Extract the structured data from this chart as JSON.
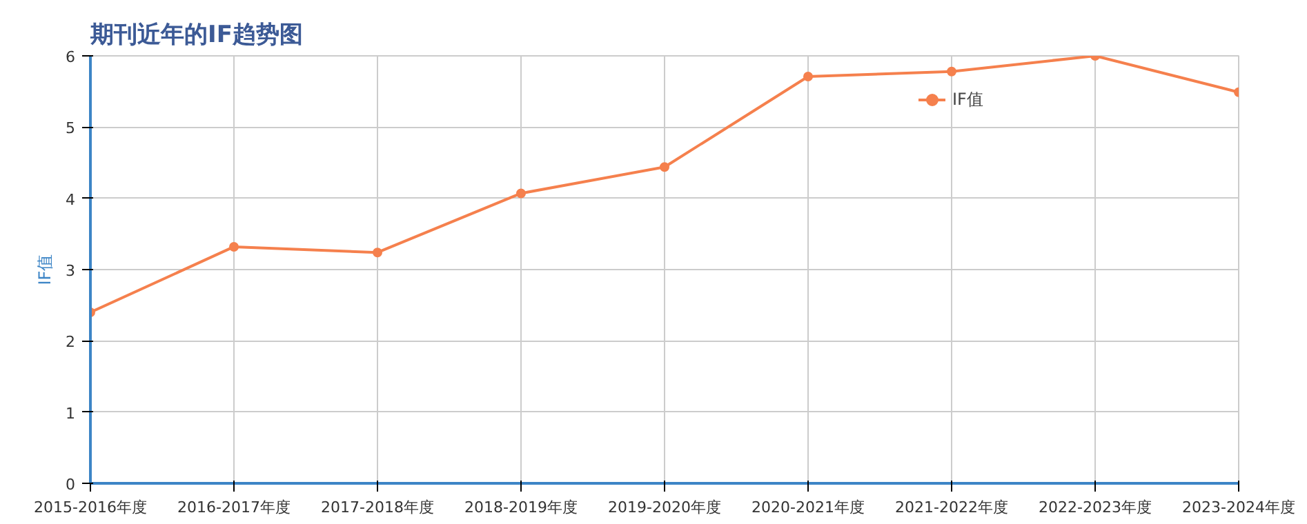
{
  "chart_data": {
    "type": "line",
    "title": "期刊近年的IF趋势图",
    "ylabel": "IF值",
    "categories": [
      "2015-2016年度",
      "2016-2017年度",
      "2017-2018年度",
      "2018-2019年度",
      "2019-2020年度",
      "2020-2021年度",
      "2021-2022年度",
      "2022-2023年度",
      "2023-2024年度"
    ],
    "series": [
      {
        "name": "IF值",
        "color": "#f5804d",
        "values": [
          2.4,
          3.32,
          3.24,
          4.07,
          4.44,
          5.71,
          5.78,
          6.0,
          5.49
        ]
      }
    ],
    "ylim": [
      0,
      6
    ],
    "yticks": [
      0,
      1,
      2,
      3,
      4,
      5,
      6
    ],
    "grid": true,
    "legend": "top",
    "marker": "circle",
    "line_style": "solid"
  }
}
